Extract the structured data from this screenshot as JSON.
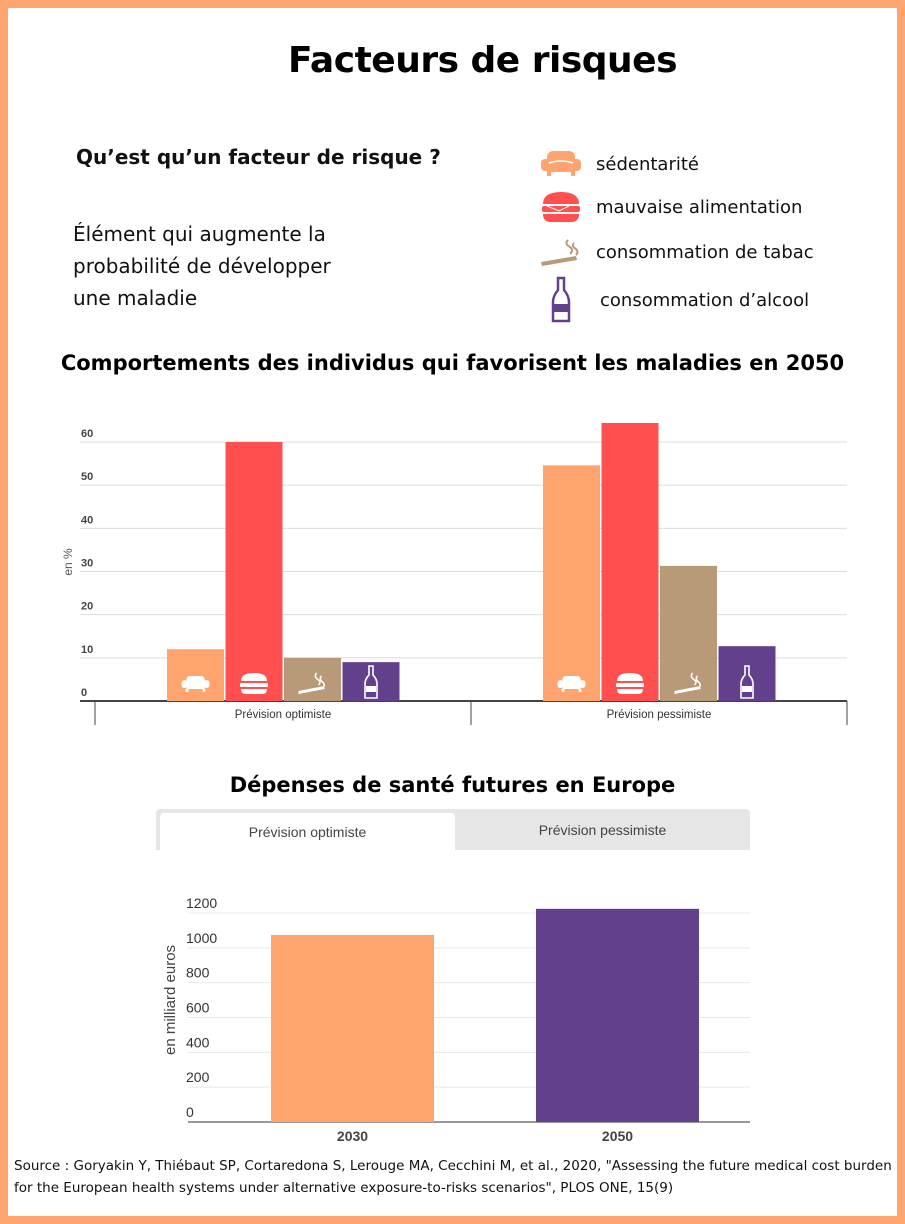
{
  "header": {
    "title": "Facteurs de risques"
  },
  "definition": {
    "question": "Qu’est qu’un facteur de risque ?",
    "lines": [
      "Élément qui augmente la",
      "probabilité de développer",
      "une maladie"
    ]
  },
  "legend": [
    {
      "label": "sédentarité",
      "icon": "sofa-icon",
      "color": "#ffa46e"
    },
    {
      "label": "mauvaise alimentation",
      "icon": "burger-icon",
      "color": "#ff4f4f"
    },
    {
      "label": "consommation de tabac",
      "icon": "cigarette-icon",
      "color": "#b89a78"
    },
    {
      "label": "consommation d’alcool",
      "icon": "bottle-icon",
      "color": "#62408b"
    }
  ],
  "chart_data": [
    {
      "type": "bar",
      "title": "Comportements des individus qui favorisent les maladies en 2050",
      "xlabel": "",
      "ylabel": "en %",
      "ylim": [
        0,
        60
      ],
      "yticks": [
        0,
        10,
        20,
        30,
        40,
        50,
        60
      ],
      "grid": true,
      "categories": [
        "Prévision optimiste",
        "Prévision pessimiste"
      ],
      "series": [
        {
          "name": "sédentarité",
          "color": "#ffa46e",
          "icon": "sofa-icon",
          "values": [
            12,
            54.6
          ]
        },
        {
          "name": "mauvaise alimentation",
          "color": "#ff4f4f",
          "icon": "burger-icon",
          "values": [
            60,
            64.4
          ]
        },
        {
          "name": "consommation de tabac",
          "color": "#b89a78",
          "icon": "cigarette-icon",
          "values": [
            10,
            31.3
          ]
        },
        {
          "name": "consommation d’alcool",
          "color": "#62408b",
          "icon": "bottle-icon",
          "values": [
            9,
            12.7
          ]
        }
      ]
    },
    {
      "type": "bar",
      "title": "Dépenses de santé futures en Europe",
      "tabs": [
        "Prévision optimiste",
        "Prévision pessimiste"
      ],
      "active_tab": "Prévision optimiste",
      "xlabel": "",
      "ylabel": "en milliard euros",
      "ylim": [
        0,
        1200
      ],
      "yticks": [
        0,
        200,
        400,
        600,
        800,
        1000,
        1200
      ],
      "grid": true,
      "categories": [
        "2030",
        "2050"
      ],
      "values": [
        1074,
        1224
      ],
      "colors": [
        "#ffa46e",
        "#62408b"
      ]
    }
  ],
  "footer": {
    "source": "Source : Goryakin Y, Thiébaut SP, Cortaredona S, Lerouge MA, Cecchini M, et al., 2020, \"Assessing the future medical cost burden for the European health systems under alternative exposure-to-risks scenarios\", PLOS ONE, 15(9)"
  }
}
